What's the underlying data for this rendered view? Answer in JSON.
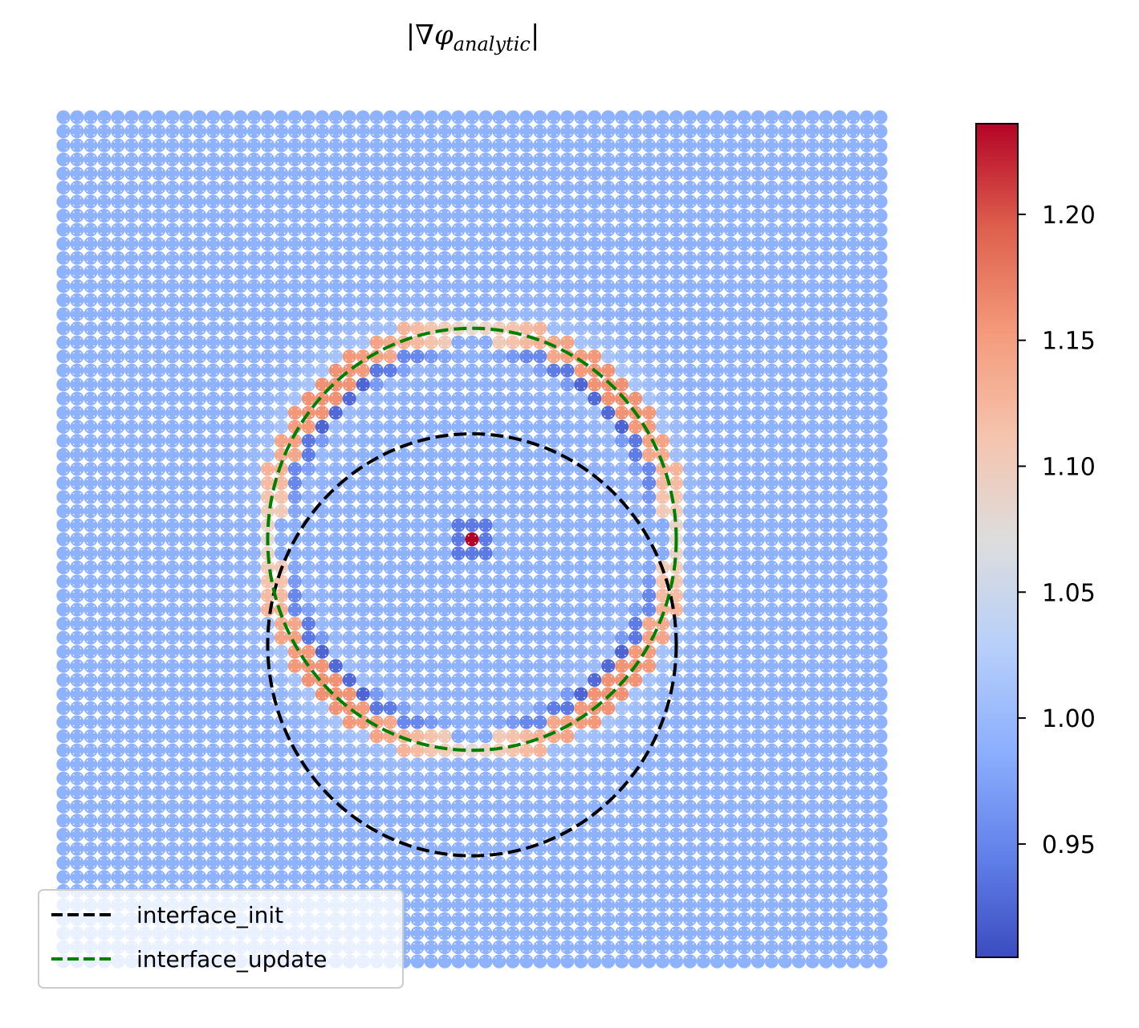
{
  "chart_data": {
    "type": "scatter",
    "title": "|∇φ_analytic|",
    "title_parts": {
      "open": "|∇",
      "phi": "φ",
      "sub": "analytic",
      "close": "|"
    },
    "grid": {
      "nx": 61,
      "ny": 61,
      "x_range": [
        -1,
        1
      ],
      "y_range": [
        -1,
        1
      ]
    },
    "colormap": "coolwarm",
    "color_range": [
      0.905,
      1.236
    ],
    "colorbar": {
      "ticks": [
        0.95,
        1.0,
        1.05,
        1.1,
        1.15,
        1.2
      ],
      "tick_labels": [
        "0.95",
        "1.00",
        "1.05",
        "1.10",
        "1.15",
        "1.20"
      ]
    },
    "series": [
      {
        "name": "interface_init",
        "type": "circle",
        "center": [
          0.0,
          -0.25
        ],
        "radius": 0.5,
        "color": "#000000",
        "style": "dashed"
      },
      {
        "name": "interface_update",
        "type": "circle",
        "center": [
          0.0,
          0.0
        ],
        "radius": 0.5,
        "color": "#008000",
        "style": "dashed"
      }
    ],
    "background_value": 0.99,
    "peak_value": 1.236,
    "legend_position": "lower-left",
    "axes_visible": false
  },
  "legend": {
    "items": [
      {
        "label": "interface_init",
        "color": "#000000"
      },
      {
        "label": "interface_update",
        "color": "#008000"
      }
    ]
  }
}
